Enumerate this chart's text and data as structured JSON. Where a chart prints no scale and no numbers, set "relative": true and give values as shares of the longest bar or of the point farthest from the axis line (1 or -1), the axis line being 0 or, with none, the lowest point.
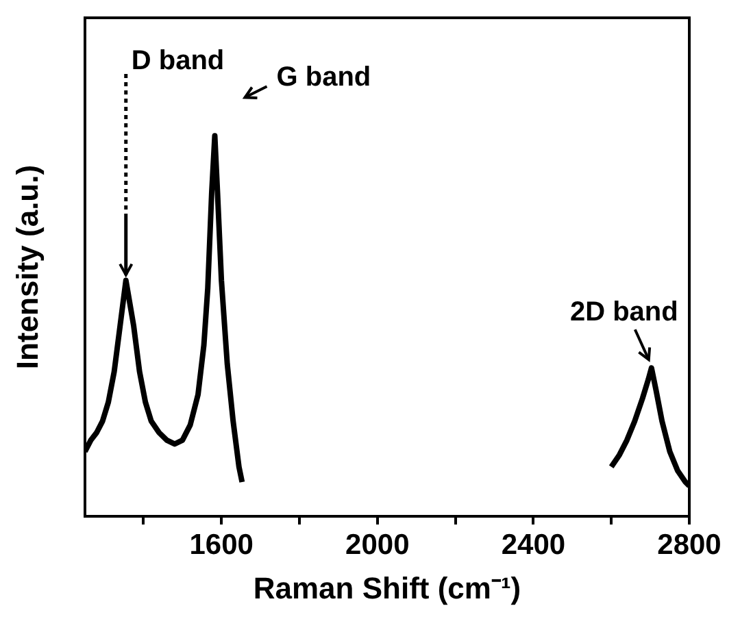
{
  "chart_data": {
    "type": "line",
    "relative": true,
    "xlabel": "Raman Shift (cm⁻¹)",
    "ylabel": "Intensity (a.u.)",
    "xlim": [
      1250,
      2800
    ],
    "xticks": [
      {
        "value": 1400,
        "label": null
      },
      1600,
      {
        "value": 1800,
        "label": null
      },
      2000,
      {
        "value": 2200,
        "label": null
      },
      2400,
      {
        "value": 2600,
        "label": null
      },
      2800
    ],
    "series": [
      {
        "color": "#000000",
        "x": [
          1250,
          1265,
          1280,
          1295,
          1310,
          1325,
          1340,
          1355,
          1365,
          1375,
          1390,
          1405,
          1420,
          1440,
          1460,
          1480,
          1500,
          1520,
          1540,
          1555,
          1565,
          1575,
          1583,
          1590,
          1600,
          1615,
          1630,
          1645,
          1653
        ],
        "values": [
          0.17,
          0.2,
          0.22,
          0.25,
          0.3,
          0.38,
          0.5,
          0.62,
          0.56,
          0.5,
          0.38,
          0.3,
          0.25,
          0.22,
          0.2,
          0.19,
          0.2,
          0.24,
          0.32,
          0.45,
          0.6,
          0.85,
          1.0,
          0.85,
          0.62,
          0.4,
          0.25,
          0.13,
          0.09
        ]
      },
      {
        "color": "#000000",
        "x": [
          2600,
          2620,
          2640,
          2660,
          2680,
          2695,
          2703,
          2715,
          2730,
          2750,
          2770,
          2790,
          2800
        ],
        "values": [
          0.13,
          0.16,
          0.2,
          0.25,
          0.31,
          0.36,
          0.39,
          0.33,
          0.25,
          0.17,
          0.12,
          0.09,
          0.08
        ]
      }
    ],
    "annotations": [
      {
        "text": "D band",
        "x": 1355,
        "y": 0.62
      },
      {
        "text": "G band",
        "x": 1583,
        "y": 1.0
      },
      {
        "text": "2D band",
        "x": 2703,
        "y": 0.39
      }
    ],
    "grid": false,
    "legend": false,
    "marker": "none",
    "line_style": "solid"
  }
}
